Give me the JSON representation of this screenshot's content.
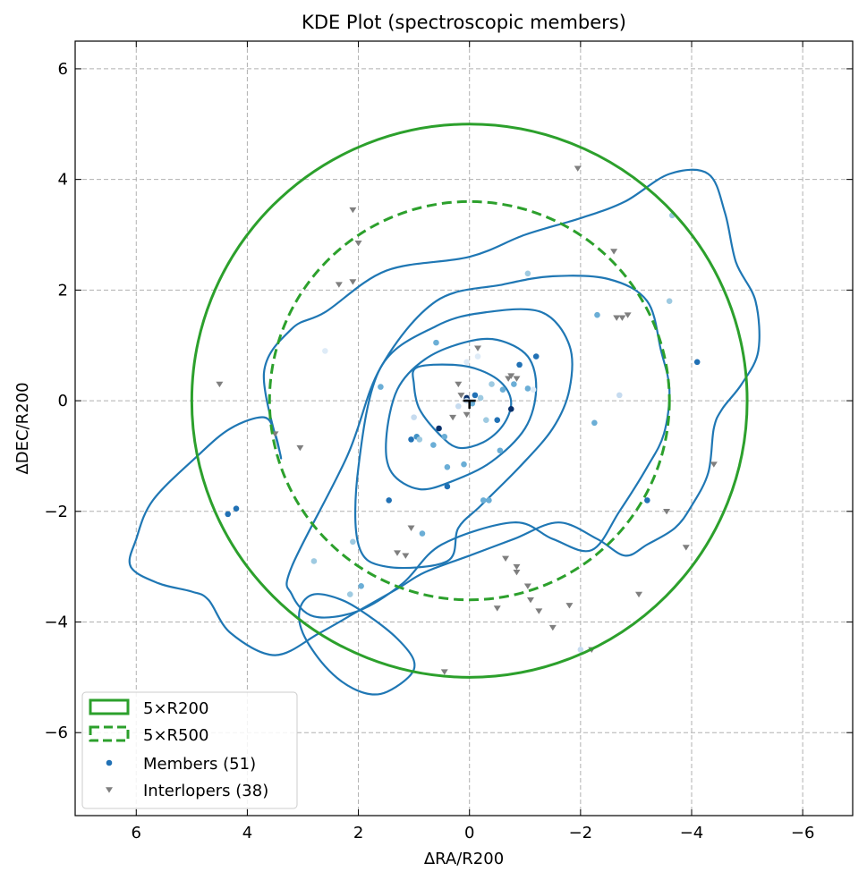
{
  "chart_data": {
    "type": "scatter",
    "title": "KDE Plot (spectroscopic members)",
    "xlabel": "ΔRA/R200",
    "ylabel": "ΔDEC/R200",
    "xlim": [
      7.1,
      -6.9
    ],
    "ylim": [
      -7.5,
      6.5
    ],
    "x_ticks": [
      6,
      4,
      2,
      0,
      -2,
      -4,
      -6
    ],
    "x_tick_labels": [
      "6",
      "4",
      "2",
      "0",
      "−2",
      "−4",
      "−6"
    ],
    "y_ticks": [
      6,
      4,
      2,
      0,
      -2,
      -4,
      -6
    ],
    "y_tick_labels": [
      "6",
      "4",
      "2",
      "0",
      "−2",
      "−4",
      "−6"
    ],
    "grid": true,
    "legend_position": "lower-left",
    "colors": {
      "circle": "#2ca02c",
      "contour": "#1f77b4",
      "member": "#2171b5",
      "interloper": "#7f7f7f",
      "grid": "#b0b0b0"
    },
    "legend": [
      {
        "label": "5×R200",
        "kind": "solid-rect"
      },
      {
        "label": "5×R500",
        "kind": "dashed-rect"
      },
      {
        "label": "Members (51)",
        "kind": "dot"
      },
      {
        "label": "Interlopers (38)",
        "kind": "triangle"
      }
    ],
    "circles": [
      {
        "name": "5×R200",
        "radius": 5.0,
        "style": "solid"
      },
      {
        "name": "5×R500",
        "radius": 3.6,
        "style": "dashed"
      }
    ],
    "center_marker": [
      0,
      0
    ],
    "contours": [
      {
        "level": 1,
        "points": [
          [
            0.95,
            0.6
          ],
          [
            0.3,
            0.65
          ],
          [
            -0.2,
            0.55
          ],
          [
            -0.6,
            0.3
          ],
          [
            -0.75,
            -0.05
          ],
          [
            -0.6,
            -0.45
          ],
          [
            -0.25,
            -0.75
          ],
          [
            0.2,
            -0.85
          ],
          [
            0.55,
            -0.6
          ],
          [
            0.9,
            -0.15
          ],
          [
            1.0,
            0.3
          ]
        ]
      },
      {
        "level": 2,
        "points": [
          [
            1.5,
            -0.7
          ],
          [
            1.3,
            0.2
          ],
          [
            0.8,
            0.75
          ],
          [
            0.1,
            1.05
          ],
          [
            -0.5,
            1.1
          ],
          [
            -1.05,
            0.8
          ],
          [
            -1.2,
            0.2
          ],
          [
            -1.0,
            -0.5
          ],
          [
            -0.4,
            -1.1
          ],
          [
            0.3,
            -1.45
          ],
          [
            0.9,
            -1.6
          ],
          [
            1.4,
            -1.3
          ]
        ]
      },
      {
        "level": 3,
        "points": [
          [
            2.0,
            -1.2
          ],
          [
            1.6,
            0.6
          ],
          [
            0.6,
            1.35
          ],
          [
            -0.3,
            1.6
          ],
          [
            -1.3,
            1.6
          ],
          [
            -1.8,
            1.0
          ],
          [
            -1.8,
            0.2
          ],
          [
            -1.5,
            -0.5
          ],
          [
            -0.9,
            -1.2
          ],
          [
            -0.2,
            -1.9
          ],
          [
            0.2,
            -2.3
          ],
          [
            0.4,
            -2.9
          ],
          [
            1.5,
            -3.0
          ],
          [
            2.0,
            -2.6
          ]
        ]
      },
      {
        "level": 4,
        "points": [
          [
            3.2,
            -3.0
          ],
          [
            2.2,
            -1.0
          ],
          [
            1.6,
            0.6
          ],
          [
            0.6,
            1.8
          ],
          [
            -0.6,
            2.1
          ],
          [
            -1.5,
            2.25
          ],
          [
            -2.5,
            2.2
          ],
          [
            -3.2,
            1.8
          ],
          [
            -3.45,
            0.9
          ],
          [
            -3.6,
            0.2
          ],
          [
            -3.5,
            -0.6
          ],
          [
            -3.2,
            -1.2
          ],
          [
            -2.7,
            -2.0
          ],
          [
            -2.2,
            -2.7
          ],
          [
            -1.5,
            -2.5
          ],
          [
            -0.8,
            -2.2
          ],
          [
            0.5,
            -2.6
          ],
          [
            1.2,
            -3.3
          ],
          [
            2.0,
            -3.8
          ],
          [
            2.8,
            -3.9
          ],
          [
            3.2,
            -3.5
          ]
        ]
      },
      {
        "level": 5,
        "points": [
          [
            3.4,
            -1.0
          ],
          [
            3.7,
            0.5
          ],
          [
            3.2,
            1.3
          ],
          [
            2.6,
            1.6
          ],
          [
            1.5,
            2.35
          ],
          [
            0.0,
            2.6
          ],
          [
            -1.0,
            3.0
          ],
          [
            -2.0,
            3.3
          ],
          [
            -2.8,
            3.6
          ],
          [
            -3.6,
            4.1
          ],
          [
            -4.3,
            4.1
          ],
          [
            -4.6,
            3.4
          ],
          [
            -4.8,
            2.5
          ],
          [
            -5.15,
            1.8
          ],
          [
            -5.2,
            0.9
          ],
          [
            -4.9,
            0.3
          ],
          [
            -4.55,
            -0.15
          ],
          [
            -4.4,
            -0.5
          ],
          [
            -4.3,
            -1.3
          ],
          [
            -4.0,
            -1.9
          ],
          [
            -3.7,
            -2.3
          ],
          [
            -3.2,
            -2.6
          ],
          [
            -2.8,
            -2.8
          ],
          [
            -2.3,
            -2.5
          ],
          [
            -1.6,
            -2.2
          ],
          [
            -0.8,
            -2.5
          ],
          [
            0.0,
            -2.8
          ],
          [
            0.8,
            -3.1
          ],
          [
            1.3,
            -3.4
          ],
          [
            2.0,
            -3.8
          ],
          [
            2.7,
            -4.2
          ],
          [
            3.5,
            -4.6
          ],
          [
            4.3,
            -4.2
          ],
          [
            4.7,
            -3.6
          ],
          [
            5.0,
            -3.45
          ],
          [
            5.6,
            -3.3
          ],
          [
            6.1,
            -3.0
          ],
          [
            6.0,
            -2.5
          ],
          [
            5.7,
            -1.8
          ],
          [
            4.9,
            -1.0
          ],
          [
            4.3,
            -0.5
          ],
          [
            3.7,
            -0.3
          ],
          [
            3.5,
            -0.6
          ]
        ]
      },
      {
        "level": 6,
        "points": [
          [
            1.6,
            -5.3
          ],
          [
            1.1,
            -5.0
          ],
          [
            1.0,
            -4.7
          ],
          [
            1.3,
            -4.3
          ],
          [
            1.8,
            -3.9
          ],
          [
            2.3,
            -3.6
          ],
          [
            2.8,
            -3.5
          ],
          [
            3.05,
            -3.75
          ],
          [
            3.0,
            -4.2
          ],
          [
            2.6,
            -4.8
          ],
          [
            2.1,
            -5.2
          ]
        ]
      }
    ],
    "members": [
      {
        "x": 0.05,
        "y": 0.05,
        "shade": "#08306b"
      },
      {
        "x": -0.1,
        "y": 0.1,
        "shade": "#2171b5"
      },
      {
        "x": -0.5,
        "y": -0.35,
        "shade": "#2171b5"
      },
      {
        "x": -0.6,
        "y": 0.2,
        "shade": "#6baed6"
      },
      {
        "x": -0.9,
        "y": 0.65,
        "shade": "#2171b5"
      },
      {
        "x": -1.2,
        "y": 0.8,
        "shade": "#2171b5"
      },
      {
        "x": -1.05,
        "y": 0.22,
        "shade": "#6baed6"
      },
      {
        "x": -0.75,
        "y": -0.15,
        "shade": "#08306b"
      },
      {
        "x": 0.55,
        "y": -0.5,
        "shade": "#08306b"
      },
      {
        "x": 0.65,
        "y": -0.8,
        "shade": "#6baed6"
      },
      {
        "x": 0.45,
        "y": -0.65,
        "shade": "#6baed6"
      },
      {
        "x": 0.95,
        "y": -0.65,
        "shade": "#4292c6"
      },
      {
        "x": 0.4,
        "y": -1.2,
        "shade": "#6baed6"
      },
      {
        "x": 0.1,
        "y": -1.15,
        "shade": "#6baed6"
      },
      {
        "x": 0.4,
        "y": -1.55,
        "shade": "#2171b5"
      },
      {
        "x": -0.55,
        "y": -0.9,
        "shade": "#6baed6"
      },
      {
        "x": -0.35,
        "y": -1.8,
        "shade": "#6baed6"
      },
      {
        "x": -0.25,
        "y": -1.8,
        "shade": "#6baed6"
      },
      {
        "x": 0.6,
        "y": 1.05,
        "shade": "#6baed6"
      },
      {
        "x": -1.05,
        "y": 2.3,
        "shade": "#9ecae1"
      },
      {
        "x": 1.6,
        "y": 0.25,
        "shade": "#6baed6"
      },
      {
        "x": 1.0,
        "y": -0.3,
        "shade": "#c6dbef"
      },
      {
        "x": 1.05,
        "y": -0.7,
        "shade": "#2171b5"
      },
      {
        "x": 0.85,
        "y": -2.4,
        "shade": "#6baed6"
      },
      {
        "x": 1.45,
        "y": -1.8,
        "shade": "#2171b5"
      },
      {
        "x": 2.6,
        "y": 0.9,
        "shade": "#deebf7"
      },
      {
        "x": 2.8,
        "y": -2.9,
        "shade": "#9ecae1"
      },
      {
        "x": 2.1,
        "y": -2.55,
        "shade": "#9ecae1"
      },
      {
        "x": 2.15,
        "y": -3.5,
        "shade": "#9ecae1"
      },
      {
        "x": 1.95,
        "y": -3.35,
        "shade": "#6baed6"
      },
      {
        "x": 4.35,
        "y": -2.05,
        "shade": "#2171b5"
      },
      {
        "x": 4.2,
        "y": -1.95,
        "shade": "#2171b5"
      },
      {
        "x": -1.15,
        "y": 0.2,
        "shade": "#deebf7"
      },
      {
        "x": -0.4,
        "y": 0.3,
        "shade": "#9ecae1"
      },
      {
        "x": -0.2,
        "y": 0.05,
        "shade": "#9ecae1"
      },
      {
        "x": -0.15,
        "y": 0.8,
        "shade": "#deebf7"
      },
      {
        "x": 0.05,
        "y": 0.7,
        "shade": "#deebf7"
      },
      {
        "x": -2.3,
        "y": 1.55,
        "shade": "#6baed6"
      },
      {
        "x": -2.25,
        "y": -0.4,
        "shade": "#6baed6"
      },
      {
        "x": -2.7,
        "y": 0.1,
        "shade": "#c6dbef"
      },
      {
        "x": -3.6,
        "y": 1.8,
        "shade": "#9ecae1"
      },
      {
        "x": -3.65,
        "y": 3.35,
        "shade": "#9ecae1"
      },
      {
        "x": -4.1,
        "y": 0.7,
        "shade": "#2171b5"
      },
      {
        "x": -3.2,
        "y": -1.8,
        "shade": "#2171b5"
      },
      {
        "x": -2.0,
        "y": -4.5,
        "shade": "#c6dbef"
      },
      {
        "x": -0.3,
        "y": -0.35,
        "shade": "#9ecae1"
      },
      {
        "x": 0.2,
        "y": -0.1,
        "shade": "#c6dbef"
      },
      {
        "x": 0.05,
        "y": 0.0,
        "shade": "#c6dbef"
      },
      {
        "x": -0.05,
        "y": -0.05,
        "shade": "#6baed6"
      },
      {
        "x": 0.9,
        "y": -0.7,
        "shade": "#9ecae1"
      },
      {
        "x": -0.8,
        "y": 0.3,
        "shade": "#6baed6"
      }
    ],
    "interlopers": [
      [
        -1.95,
        4.2
      ],
      [
        2.1,
        3.45
      ],
      [
        2.0,
        2.85
      ],
      [
        2.35,
        2.1
      ],
      [
        2.1,
        2.15
      ],
      [
        0.2,
        0.3
      ],
      [
        -0.15,
        0.95
      ],
      [
        -0.7,
        0.4
      ],
      [
        -0.85,
        0.4
      ],
      [
        -2.6,
        2.7
      ],
      [
        -2.65,
        1.5
      ],
      [
        -2.75,
        1.5
      ],
      [
        -2.85,
        1.55
      ],
      [
        4.5,
        0.3
      ],
      [
        3.5,
        -0.6
      ],
      [
        3.05,
        -0.85
      ],
      [
        0.3,
        -0.3
      ],
      [
        1.05,
        -2.3
      ],
      [
        1.15,
        -2.8
      ],
      [
        -0.65,
        -2.85
      ],
      [
        -0.85,
        -3.0
      ],
      [
        -0.85,
        -3.1
      ],
      [
        -1.05,
        -3.35
      ],
      [
        -1.1,
        -3.6
      ],
      [
        -1.25,
        -3.8
      ],
      [
        -0.5,
        -3.75
      ],
      [
        -1.5,
        -4.1
      ],
      [
        -1.8,
        -3.7
      ],
      [
        -3.05,
        -3.5
      ],
      [
        -3.55,
        -2.0
      ],
      [
        -3.9,
        -2.65
      ],
      [
        -4.4,
        -1.15
      ],
      [
        0.45,
        -4.9
      ],
      [
        0.05,
        -0.25
      ],
      [
        0.15,
        0.1
      ],
      [
        -0.75,
        0.45
      ],
      [
        -2.2,
        -4.5
      ],
      [
        1.3,
        -2.75
      ]
    ]
  }
}
